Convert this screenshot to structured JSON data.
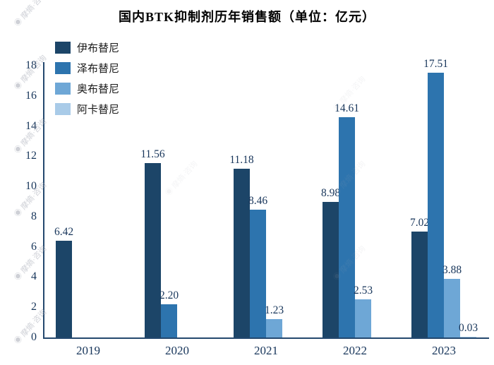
{
  "watermark": {
    "text": "摩熵·咨询",
    "icon": "◉"
  },
  "chart_data": {
    "type": "bar",
    "title": "国内BTK抑制剂历年销售额（单位：亿元）",
    "categories": [
      "2019",
      "2020",
      "2021",
      "2022",
      "2023"
    ],
    "series": [
      {
        "name": "伊布替尼",
        "color": "#1c4568",
        "values": [
          6.42,
          11.56,
          11.18,
          8.98,
          7.02
        ]
      },
      {
        "name": "泽布替尼",
        "color": "#2d74ae",
        "values": [
          null,
          2.2,
          8.46,
          14.61,
          17.51
        ]
      },
      {
        "name": "奥布替尼",
        "color": "#6ea7d6",
        "values": [
          null,
          null,
          1.23,
          2.53,
          3.88
        ]
      },
      {
        "name": "阿卡替尼",
        "color": "#a9cbe8",
        "values": [
          null,
          null,
          null,
          null,
          0.03
        ]
      }
    ],
    "ylim": [
      0,
      18
    ],
    "yticks": [
      0,
      2,
      4,
      6,
      8,
      10,
      12,
      14,
      16,
      18
    ],
    "grid": false,
    "legend_position": "top-left",
    "xlabel": "",
    "ylabel": ""
  }
}
